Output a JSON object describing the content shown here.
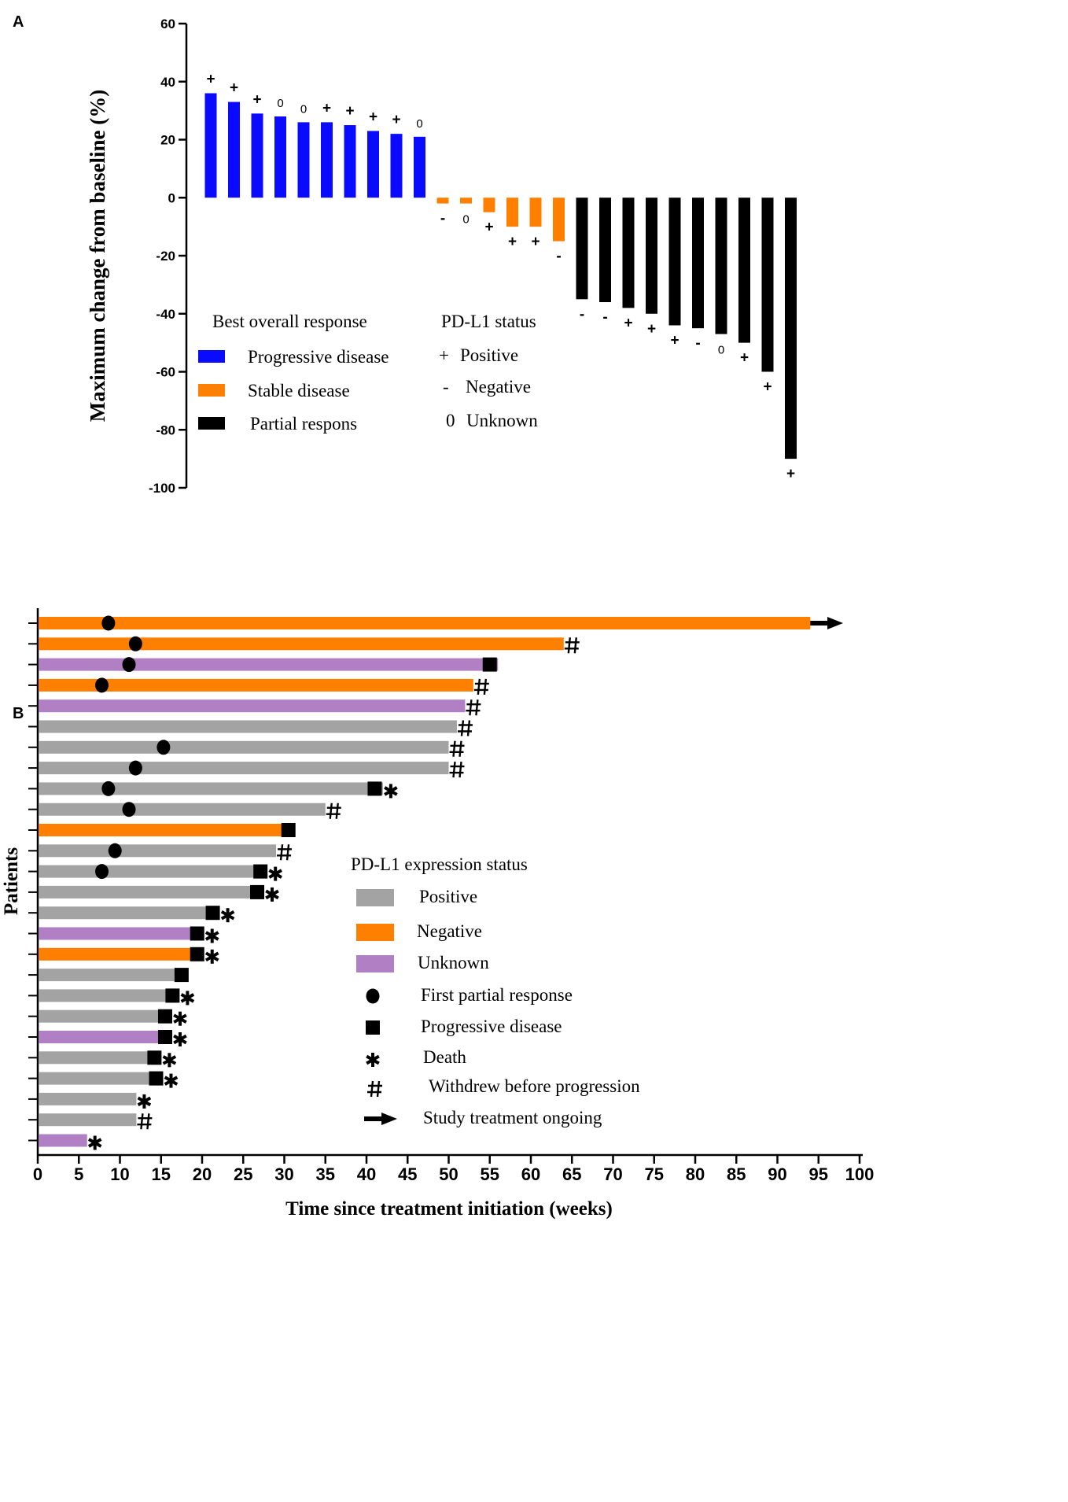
{
  "panel_labels": {
    "a": "A",
    "b": "B"
  },
  "chart_data": [
    {
      "type": "bar",
      "title": "",
      "ylabel": "Maximum change from baseline (%)",
      "xlabel": "",
      "ylim": [
        -100,
        60
      ],
      "yticks": [
        60,
        40,
        20,
        0,
        -20,
        -40,
        -60,
        -80,
        -100
      ],
      "ytick_labels": [
        "60",
        "40",
        "20",
        "0",
        "-20",
        "-40",
        "-60",
        "-80",
        "-100"
      ],
      "colors": {
        "PD": "#0a0aff",
        "SD": "#ff8000",
        "PR": "#000000"
      },
      "patients": [
        {
          "value": 36,
          "response": "PD",
          "pdl1": "+"
        },
        {
          "value": 33,
          "response": "PD",
          "pdl1": "+"
        },
        {
          "value": 29,
          "response": "PD",
          "pdl1": "+"
        },
        {
          "value": 28,
          "response": "PD",
          "pdl1": "0"
        },
        {
          "value": 26,
          "response": "PD",
          "pdl1": "0"
        },
        {
          "value": 26,
          "response": "PD",
          "pdl1": "+"
        },
        {
          "value": 25,
          "response": "PD",
          "pdl1": "+"
        },
        {
          "value": 23,
          "response": "PD",
          "pdl1": "+"
        },
        {
          "value": 22,
          "response": "PD",
          "pdl1": "+"
        },
        {
          "value": 21,
          "response": "PD",
          "pdl1": "0"
        },
        {
          "value": -2,
          "response": "SD",
          "pdl1": "-"
        },
        {
          "value": -2,
          "response": "SD",
          "pdl1": "0"
        },
        {
          "value": -5,
          "response": "SD",
          "pdl1": "+"
        },
        {
          "value": -10,
          "response": "SD",
          "pdl1": "+"
        },
        {
          "value": -10,
          "response": "SD",
          "pdl1": "+"
        },
        {
          "value": -15,
          "response": "SD",
          "pdl1": "-"
        },
        {
          "value": -35,
          "response": "PR",
          "pdl1": "-"
        },
        {
          "value": -36,
          "response": "PR",
          "pdl1": "-"
        },
        {
          "value": -38,
          "response": "PR",
          "pdl1": "+"
        },
        {
          "value": -40,
          "response": "PR",
          "pdl1": "+"
        },
        {
          "value": -44,
          "response": "PR",
          "pdl1": "+"
        },
        {
          "value": -45,
          "response": "PR",
          "pdl1": "-"
        },
        {
          "value": -47,
          "response": "PR",
          "pdl1": "0"
        },
        {
          "value": -50,
          "response": "PR",
          "pdl1": "+"
        },
        {
          "value": -60,
          "response": "PR",
          "pdl1": "+"
        },
        {
          "value": -90,
          "response": "PR",
          "pdl1": "+"
        }
      ],
      "legend_response": {
        "title": "Best overall response",
        "items": [
          {
            "label": "Progressive disease",
            "color": "#0a0aff"
          },
          {
            "label": "Stable disease",
            "color": "#ff8000"
          },
          {
            "label": "Partial respons",
            "color": "#000000"
          }
        ]
      },
      "legend_pdl1": {
        "title": "PD-L1 status",
        "items": [
          {
            "symbol": "+",
            "label": "Positive"
          },
          {
            "symbol": "-",
            "label": "Negative"
          },
          {
            "symbol": "0",
            "label": "Unknown"
          }
        ]
      }
    },
    {
      "type": "swimmer",
      "title": "",
      "ylabel": "Patients",
      "xlabel": "Time since treatment initiation (weeks)",
      "xlim": [
        0,
        100
      ],
      "xticks": [
        0,
        5,
        10,
        15,
        20,
        25,
        30,
        35,
        40,
        45,
        50,
        55,
        60,
        65,
        70,
        75,
        80,
        85,
        90,
        95,
        100
      ],
      "xtick_labels": [
        "0",
        "5",
        "10",
        "15",
        "20",
        "25",
        "30",
        "35",
        "40",
        "45",
        "50",
        "55",
        "60",
        "65",
        "70",
        "75",
        "80",
        "85",
        "90",
        "95",
        "100"
      ],
      "colors": {
        "positive": "#a3a3a3",
        "negative": "#ff8000",
        "unknown": "#b07fc4"
      },
      "patients": [
        {
          "duration": 94,
          "pdl1": "negative",
          "response_week": 8.6,
          "pd_week": null,
          "end_marker": "arrow"
        },
        {
          "duration": 64,
          "pdl1": "negative",
          "response_week": 11.9,
          "pd_week": null,
          "end_marker": "#"
        },
        {
          "duration": 56,
          "pdl1": "unknown",
          "response_week": 11.1,
          "pd_week": 55,
          "end_marker": null
        },
        {
          "duration": 53,
          "pdl1": "negative",
          "response_week": 7.8,
          "pd_week": null,
          "end_marker": "#"
        },
        {
          "duration": 52,
          "pdl1": "unknown",
          "response_week": null,
          "pd_week": null,
          "end_marker": "#"
        },
        {
          "duration": 51,
          "pdl1": "positive",
          "response_week": null,
          "pd_week": null,
          "end_marker": "#"
        },
        {
          "duration": 50,
          "pdl1": "positive",
          "response_week": 15.3,
          "pd_week": null,
          "end_marker": "#"
        },
        {
          "duration": 50,
          "pdl1": "positive",
          "response_week": 11.9,
          "pd_week": null,
          "end_marker": "#"
        },
        {
          "duration": 42,
          "pdl1": "positive",
          "response_week": 8.6,
          "pd_week": 41,
          "end_marker": "*"
        },
        {
          "duration": 35,
          "pdl1": "positive",
          "response_week": 11.1,
          "pd_week": null,
          "end_marker": "#"
        },
        {
          "duration": 30,
          "pdl1": "negative",
          "response_week": null,
          "pd_week": 30.5,
          "end_marker": null
        },
        {
          "duration": 29,
          "pdl1": "positive",
          "response_week": 9.4,
          "pd_week": null,
          "end_marker": "#"
        },
        {
          "duration": 27,
          "pdl1": "positive",
          "response_week": 7.8,
          "pd_week": 27.1,
          "end_marker": "*"
        },
        {
          "duration": 27,
          "pdl1": "positive",
          "response_week": null,
          "pd_week": 26.7,
          "end_marker": "*"
        },
        {
          "duration": 21,
          "pdl1": "positive",
          "response_week": null,
          "pd_week": 21.3,
          "end_marker": "*"
        },
        {
          "duration": 19,
          "pdl1": "unknown",
          "response_week": null,
          "pd_week": 19.4,
          "end_marker": "*"
        },
        {
          "duration": 19,
          "pdl1": "negative",
          "response_week": null,
          "pd_week": 19.4,
          "end_marker": "*"
        },
        {
          "duration": 17,
          "pdl1": "positive",
          "response_week": null,
          "pd_week": 17.5,
          "end_marker": null
        },
        {
          "duration": 16,
          "pdl1": "positive",
          "response_week": null,
          "pd_week": 16.4,
          "end_marker": "*"
        },
        {
          "duration": 15,
          "pdl1": "positive",
          "response_week": null,
          "pd_week": 15.5,
          "end_marker": "*"
        },
        {
          "duration": 15,
          "pdl1": "unknown",
          "response_week": null,
          "pd_week": 15.5,
          "end_marker": "*"
        },
        {
          "duration": 14,
          "pdl1": "positive",
          "response_week": null,
          "pd_week": 14.2,
          "end_marker": "*"
        },
        {
          "duration": 14,
          "pdl1": "positive",
          "response_week": null,
          "pd_week": 14.4,
          "end_marker": "*"
        },
        {
          "duration": 12,
          "pdl1": "positive",
          "response_week": null,
          "pd_week": null,
          "end_marker": "*"
        },
        {
          "duration": 12,
          "pdl1": "positive",
          "response_week": null,
          "pd_week": null,
          "end_marker": "#"
        },
        {
          "duration": 6,
          "pdl1": "unknown",
          "response_week": null,
          "pd_week": null,
          "end_marker": "*"
        }
      ],
      "legend": {
        "title": "PD-L1 expression status",
        "items": [
          {
            "kind": "bar",
            "color": "#a3a3a3",
            "label": "Positive"
          },
          {
            "kind": "bar",
            "color": "#ff8000",
            "label": "Negative"
          },
          {
            "kind": "bar",
            "color": "#b07fc4",
            "label": "Unknown"
          },
          {
            "kind": "circle",
            "label": "First partial response"
          },
          {
            "kind": "square",
            "label": "Progressive disease"
          },
          {
            "kind": "star",
            "label": "Death"
          },
          {
            "kind": "hash",
            "label": "Withdrew before progression"
          },
          {
            "kind": "arrow",
            "label": "Study treatment ongoing"
          }
        ]
      }
    }
  ]
}
